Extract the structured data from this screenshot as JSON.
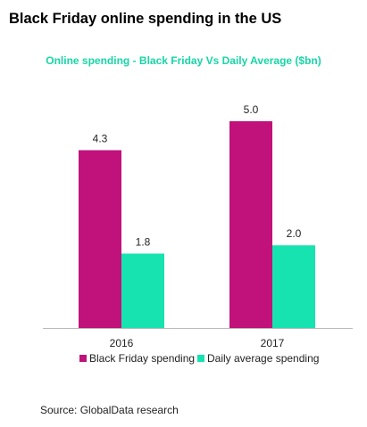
{
  "title": "Black Friday online spending in the US",
  "source": "Source: GlobalData research",
  "colors": {
    "black_friday": "#c0127a",
    "daily_average": "#17e3b0",
    "subtitle": "#17d6a6",
    "axis": "#bbbbbb"
  },
  "chart_data": {
    "type": "bar",
    "title": "Online spending - Black Friday Vs Daily Average ($bn)",
    "xlabel": "",
    "ylabel": "",
    "categories": [
      "2016",
      "2017"
    ],
    "series": [
      {
        "name": "Black Friday spending",
        "values": [
          4.3,
          5.0
        ],
        "labels": [
          "4.3",
          "5.0"
        ],
        "color": "#c0127a"
      },
      {
        "name": "Daily average spending",
        "values": [
          1.8,
          2.0
        ],
        "labels": [
          "1.8",
          "2.0"
        ],
        "color": "#17e3b0"
      }
    ],
    "ylim": [
      0,
      6
    ],
    "grid": false,
    "legend_position": "bottom"
  }
}
